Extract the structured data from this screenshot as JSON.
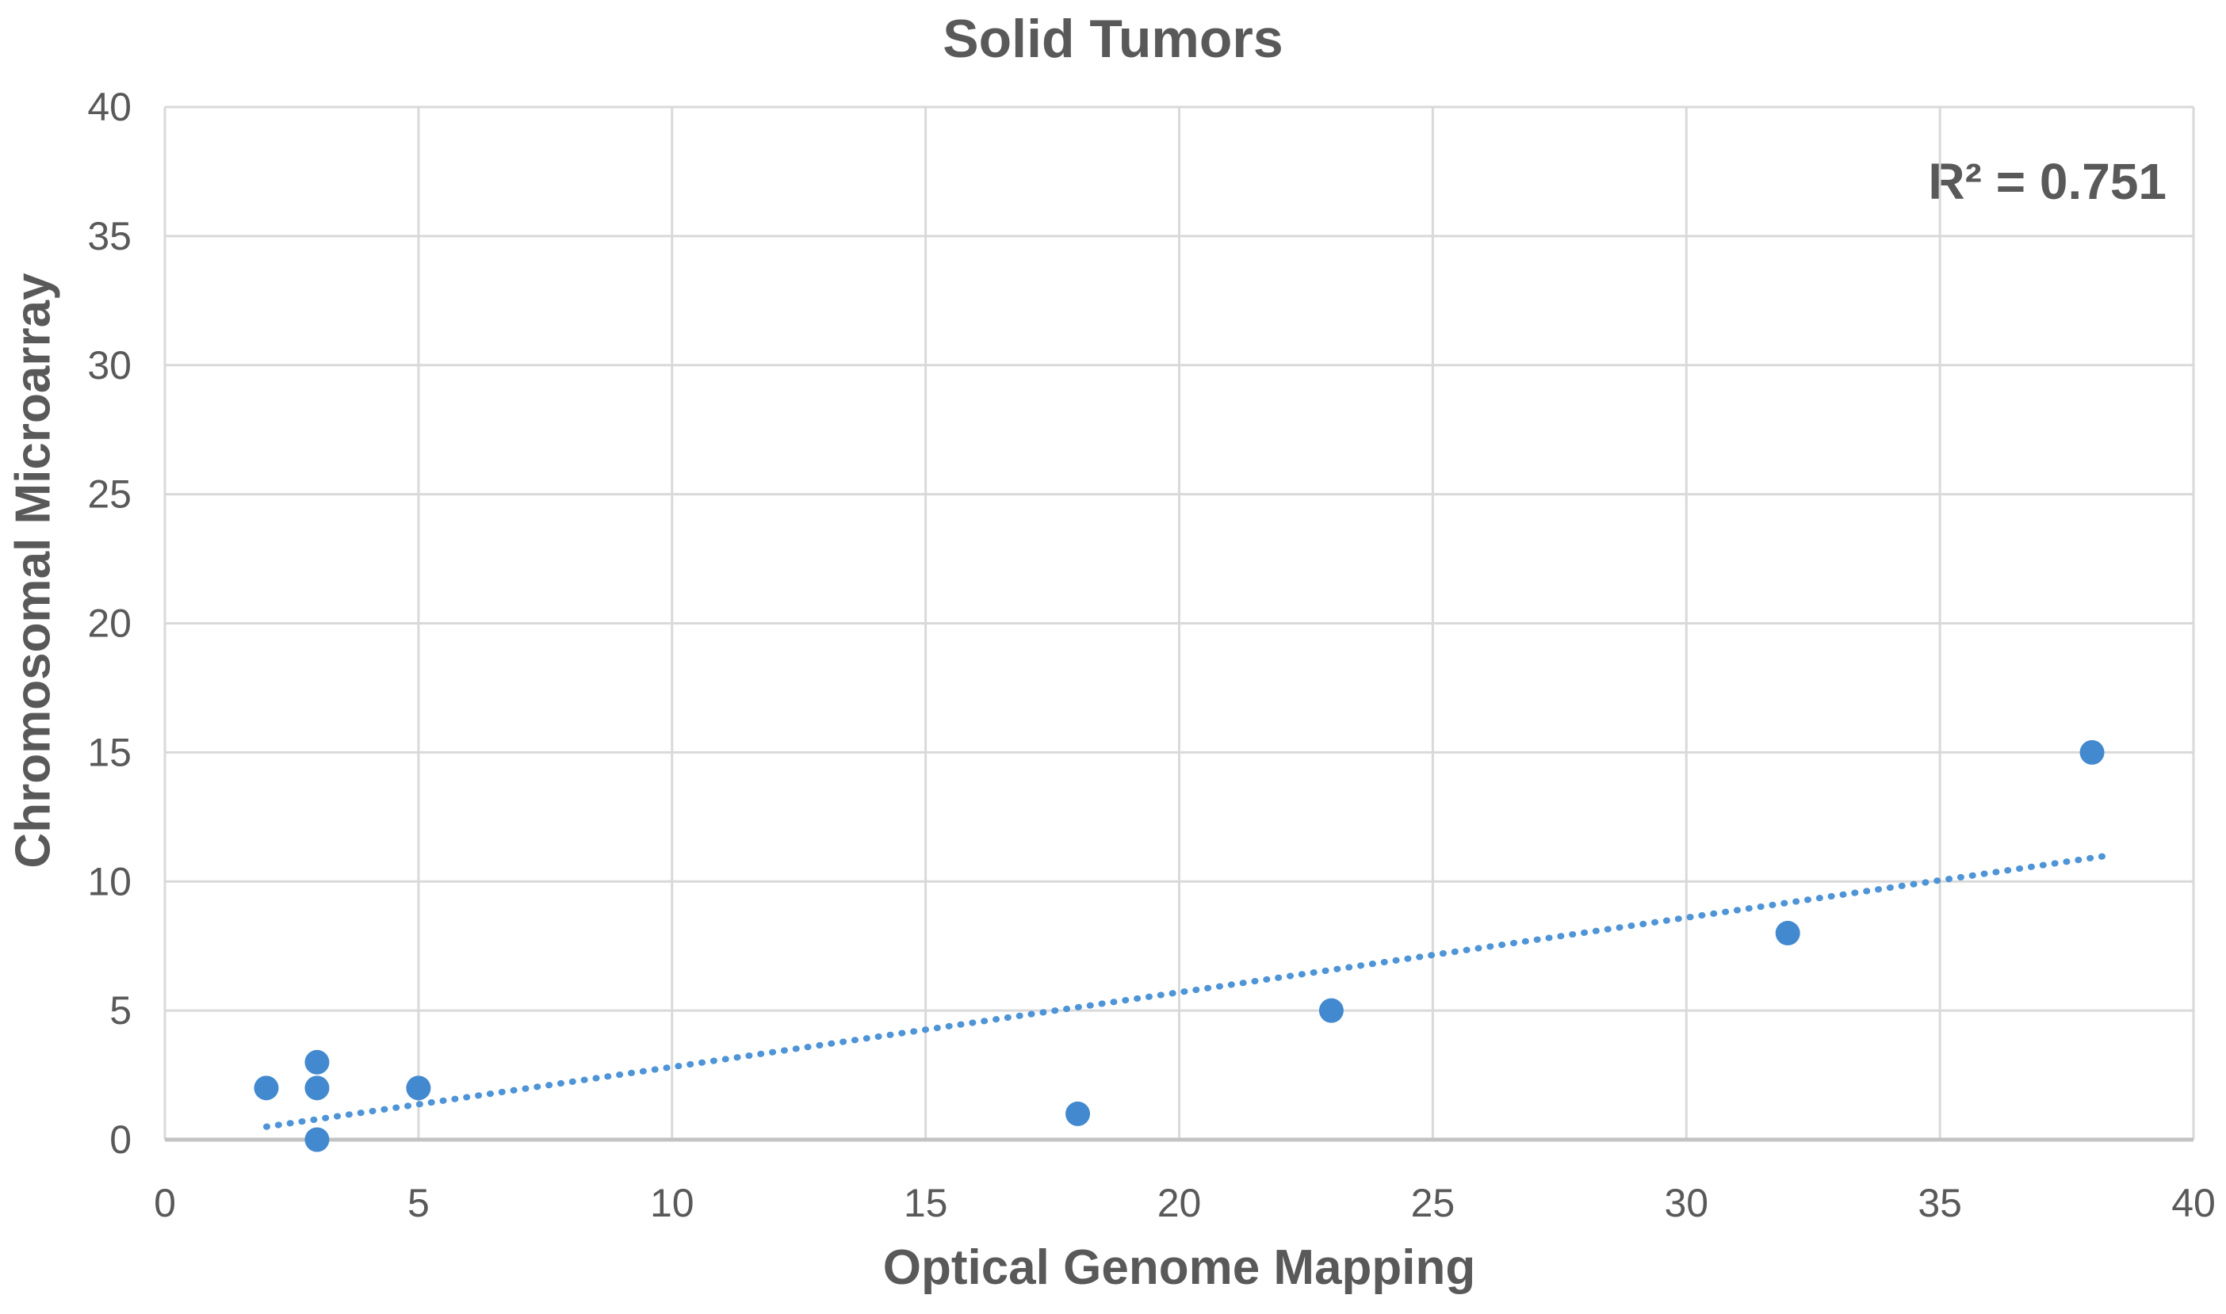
{
  "figure": {
    "title": "Solid Tumors",
    "r2_annotation": "R² = 0.751",
    "x_axis_title": "Optical Genome Mapping",
    "y_axis_title": "Chromosomal Microarray"
  },
  "chart_data": {
    "type": "scatter",
    "title": "Solid Tumors",
    "xlabel": "Optical Genome Mapping",
    "ylabel": "Chromosomal Microarray",
    "xlim": [
      0,
      40
    ],
    "ylim": [
      0,
      40
    ],
    "x_ticks": [
      0,
      5,
      10,
      15,
      20,
      25,
      30,
      35,
      40
    ],
    "y_ticks": [
      0,
      5,
      10,
      15,
      20,
      25,
      30,
      35,
      40
    ],
    "grid": true,
    "legend": "none",
    "points": [
      {
        "x": 2,
        "y": 2
      },
      {
        "x": 3,
        "y": 3
      },
      {
        "x": 3,
        "y": 2
      },
      {
        "x": 3,
        "y": 0
      },
      {
        "x": 5,
        "y": 2
      },
      {
        "x": 18,
        "y": 1
      },
      {
        "x": 23,
        "y": 5
      },
      {
        "x": 32,
        "y": 8
      },
      {
        "x": 38,
        "y": 15
      }
    ],
    "trendline": {
      "style": "dotted",
      "x_start": 2,
      "y_start": 0.5,
      "x_end": 38.3,
      "y_end": 11.0
    },
    "r_squared": 0.751,
    "annotation": "R² = 0.751",
    "colors": {
      "marker": "#4389CF",
      "trendline": "#4E94D6",
      "gridline": "#D9D9D9",
      "axis_line": "#C3C3C3",
      "text": "#595959"
    }
  }
}
